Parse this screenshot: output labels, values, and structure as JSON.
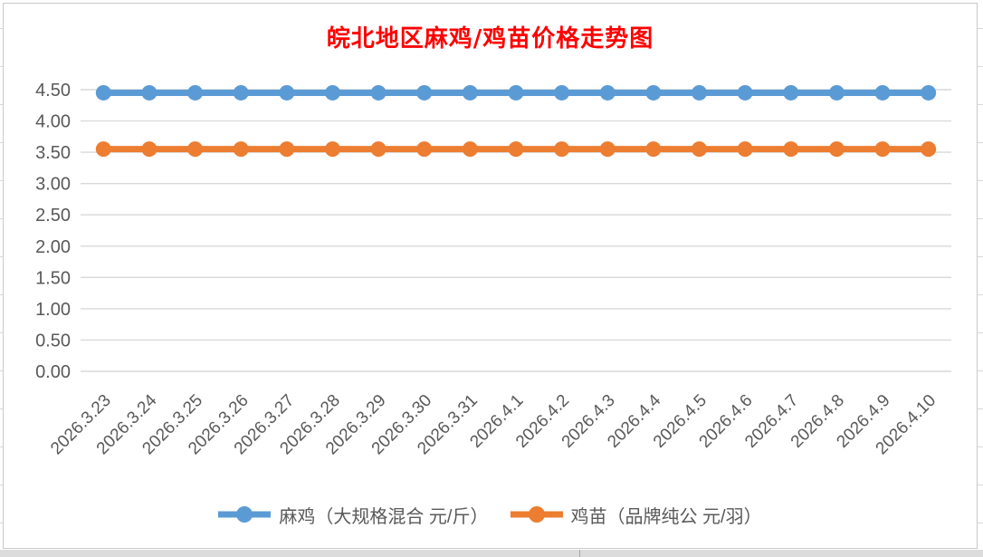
{
  "chart_data": {
    "type": "line",
    "title": "皖北地区麻鸡/鸡苗价格走势图",
    "title_color": "#ff0000",
    "categories": [
      "2026.3.23",
      "2026.3.24",
      "2026.3.25",
      "2026.3.26",
      "2026.3.27",
      "2026.3.28",
      "2026.3.29",
      "2026.3.30",
      "2026.3.31",
      "2026.4.1",
      "2026.4.2",
      "2026.4.3",
      "2026.4.4",
      "2026.4.5",
      "2026.4.6",
      "2026.4.7",
      "2026.4.8",
      "2026.4.9",
      "2026.4.10"
    ],
    "series": [
      {
        "name": "麻鸡（大规格混合 元/斤）",
        "color": "#5b9bd5",
        "values": [
          4.45,
          4.45,
          4.45,
          4.45,
          4.45,
          4.45,
          4.45,
          4.45,
          4.45,
          4.45,
          4.45,
          4.45,
          4.45,
          4.45,
          4.45,
          4.45,
          4.45,
          4.45,
          4.45
        ]
      },
      {
        "name": "鸡苗（品牌纯公 元/羽）",
        "color": "#ed7d31",
        "values": [
          3.55,
          3.55,
          3.55,
          3.55,
          3.55,
          3.55,
          3.55,
          3.55,
          3.55,
          3.55,
          3.55,
          3.55,
          3.55,
          3.55,
          3.55,
          3.55,
          3.55,
          3.55,
          3.55
        ]
      }
    ],
    "xlabel": "",
    "ylabel": "",
    "ylim": [
      0,
      4.5
    ],
    "ytick_labels": [
      "0.00",
      "0.50",
      "1.00",
      "1.50",
      "2.00",
      "2.50",
      "3.00",
      "3.50",
      "4.00",
      "4.50"
    ],
    "grid": true,
    "gridline_color": "#d9d9d9",
    "axis_label_color": "#595959",
    "legend_position": "bottom"
  }
}
